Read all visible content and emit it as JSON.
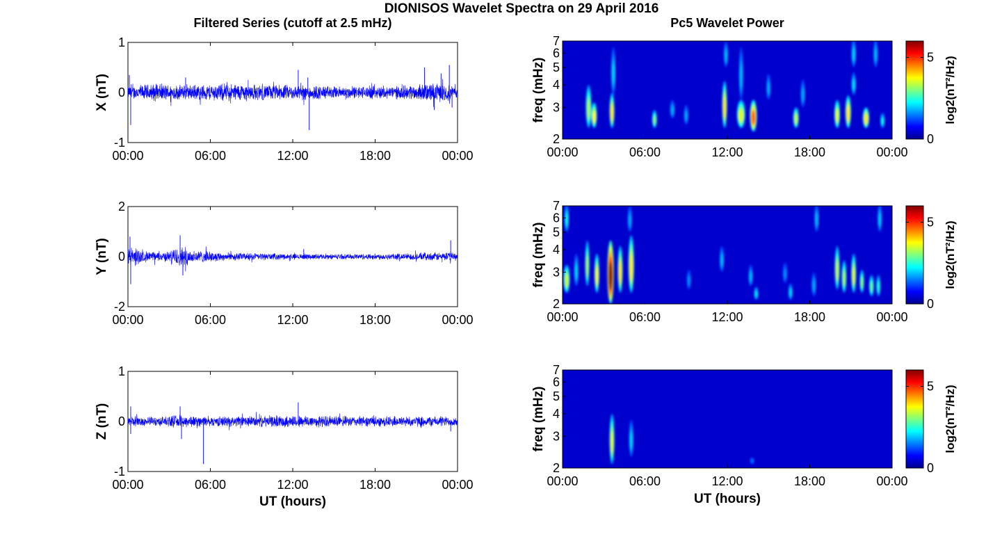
{
  "figure": {
    "title": "DIONISOS Wavelet Spectra on 29 April 2016",
    "left_column_title": "Filtered Series (cutoff at 2.5 mHz)",
    "right_column_title": "Pc5 Wavelet Power",
    "xlabel": "UT (hours)"
  },
  "chart_data": [
    {
      "type": "line",
      "ylabel": "X (nT)",
      "x_ticks": [
        "00:00",
        "06:00",
        "12:00",
        "18:00",
        "00:00"
      ],
      "x_range_hours": [
        0,
        24
      ],
      "ylim": [
        -1,
        1
      ],
      "y_ticks": [
        "1",
        "0",
        "-1"
      ],
      "series_color": "#0000ff",
      "envelope": [
        [
          0,
          0.12
        ],
        [
          1,
          0.15
        ],
        [
          2,
          0.17
        ],
        [
          3,
          0.16
        ],
        [
          4,
          0.14
        ],
        [
          5,
          0.15
        ],
        [
          6,
          0.16
        ],
        [
          7,
          0.17
        ],
        [
          8,
          0.17
        ],
        [
          9,
          0.16
        ],
        [
          10,
          0.15
        ],
        [
          11,
          0.15
        ],
        [
          12,
          0.14
        ],
        [
          13,
          0.15
        ],
        [
          14,
          0.14
        ],
        [
          15,
          0.12
        ],
        [
          16,
          0.12
        ],
        [
          17,
          0.12
        ],
        [
          18,
          0.13
        ],
        [
          19,
          0.12
        ],
        [
          20,
          0.13
        ],
        [
          21,
          0.15
        ],
        [
          22,
          0.18
        ],
        [
          23,
          0.17
        ],
        [
          24,
          0.12
        ]
      ],
      "spikes": [
        [
          0.2,
          -0.65
        ],
        [
          0.1,
          0.35
        ],
        [
          4.2,
          0.3
        ],
        [
          12.4,
          0.45
        ],
        [
          13.2,
          -0.75
        ],
        [
          13.1,
          0.3
        ],
        [
          21.6,
          0.5
        ],
        [
          23.4,
          0.55
        ],
        [
          22.3,
          -0.35
        ],
        [
          22.8,
          0.38
        ],
        [
          23.6,
          -0.3
        ]
      ]
    },
    {
      "type": "heatmap",
      "ylabel": "freq (mHz)",
      "x_ticks": [
        "00:00",
        "06:00",
        "12:00",
        "18:00",
        "00:00"
      ],
      "y_ticks": [
        "2",
        "3",
        "4",
        "5",
        "6",
        "7"
      ],
      "ylim_mhz": [
        2,
        7
      ],
      "y_scale": "log",
      "colorbar_label": "log2(nT²/Hz)",
      "colorbar_ticks": [
        "0",
        "5"
      ],
      "colorbar_range": [
        0,
        6
      ],
      "colormap": "jet",
      "blobs": [
        [
          1.9,
          2.3,
          4.0,
          0.15,
          2.8
        ],
        [
          2.3,
          2.3,
          3.2,
          0.15,
          3.4
        ],
        [
          3.6,
          2.3,
          3.6,
          0.12,
          3.6
        ],
        [
          3.7,
          3.5,
          6.5,
          0.06,
          1.5
        ],
        [
          6.7,
          2.3,
          2.9,
          0.12,
          2.6
        ],
        [
          8.0,
          2.6,
          3.3,
          0.12,
          1.2
        ],
        [
          9.0,
          2.4,
          3.1,
          0.1,
          1.2
        ],
        [
          11.8,
          2.3,
          4.2,
          0.12,
          3.6
        ],
        [
          11.9,
          5.0,
          7.0,
          0.05,
          1.3
        ],
        [
          13.0,
          2.3,
          3.3,
          0.25,
          3.2
        ],
        [
          13.9,
          2.2,
          3.3,
          0.2,
          4.5
        ],
        [
          13.0,
          3.3,
          6.5,
          0.06,
          1.3
        ],
        [
          15.0,
          3.3,
          4.6,
          0.07,
          1.2
        ],
        [
          17.0,
          2.3,
          3.0,
          0.15,
          3.0
        ],
        [
          17.5,
          3.0,
          4.3,
          0.08,
          1.2
        ],
        [
          20.0,
          2.3,
          3.3,
          0.15,
          3.2
        ],
        [
          20.8,
          2.3,
          3.5,
          0.15,
          3.6
        ],
        [
          21.2,
          3.5,
          4.7,
          0.08,
          1.6
        ],
        [
          22.1,
          2.3,
          3.0,
          0.18,
          3.6
        ],
        [
          21.2,
          5.0,
          7.2,
          0.06,
          1.5
        ],
        [
          22.8,
          5.0,
          7.2,
          0.06,
          1.3
        ],
        [
          23.3,
          2.3,
          2.8,
          0.1,
          1.8
        ]
      ]
    },
    {
      "type": "line",
      "ylabel": "Y (nT)",
      "x_ticks": [
        "00:00",
        "06:00",
        "12:00",
        "18:00",
        "00:00"
      ],
      "x_range_hours": [
        0,
        24
      ],
      "ylim": [
        -2,
        2
      ],
      "y_ticks": [
        "2",
        "0",
        "-2"
      ],
      "series_color": "#0000ff",
      "envelope": [
        [
          0,
          0.35
        ],
        [
          0.5,
          0.4
        ],
        [
          1,
          0.22
        ],
        [
          2,
          0.18
        ],
        [
          3,
          0.2
        ],
        [
          3.8,
          0.45
        ],
        [
          4.5,
          0.3
        ],
        [
          5,
          0.25
        ],
        [
          6,
          0.2
        ],
        [
          7,
          0.16
        ],
        [
          8,
          0.15
        ],
        [
          9,
          0.14
        ],
        [
          10,
          0.13
        ],
        [
          11,
          0.12
        ],
        [
          12,
          0.11
        ],
        [
          13,
          0.11
        ],
        [
          14,
          0.1
        ],
        [
          15,
          0.1
        ],
        [
          16,
          0.1
        ],
        [
          17,
          0.11
        ],
        [
          18,
          0.12
        ],
        [
          19,
          0.12
        ],
        [
          20,
          0.13
        ],
        [
          21,
          0.14
        ],
        [
          22,
          0.15
        ],
        [
          23,
          0.17
        ],
        [
          24,
          0.15
        ]
      ],
      "spikes": [
        [
          0.2,
          -1.1
        ],
        [
          0.15,
          0.8
        ],
        [
          3.8,
          0.85
        ],
        [
          4.0,
          -0.75
        ],
        [
          23.5,
          0.65
        ],
        [
          12.8,
          0.3
        ]
      ]
    },
    {
      "type": "heatmap",
      "ylabel": "freq (mHz)",
      "x_ticks": [
        "00:00",
        "06:00",
        "12:00",
        "18:00",
        "00:00"
      ],
      "y_ticks": [
        "2",
        "3",
        "4",
        "5",
        "6",
        "7"
      ],
      "ylim_mhz": [
        2,
        7
      ],
      "y_scale": "log",
      "colorbar_label": "log2(nT²/Hz)",
      "colorbar_ticks": [
        "0",
        "5"
      ],
      "colorbar_range": [
        0,
        6
      ],
      "colormap": "jet",
      "blobs": [
        [
          0.3,
          2.3,
          3.3,
          0.18,
          3.0
        ],
        [
          0.3,
          5.0,
          7.2,
          0.05,
          1.8
        ],
        [
          1.0,
          2.5,
          3.8,
          0.1,
          1.5
        ],
        [
          1.8,
          2.5,
          4.5,
          0.1,
          2.8
        ],
        [
          2.5,
          2.3,
          3.8,
          0.12,
          3.4
        ],
        [
          3.5,
          2.0,
          4.5,
          0.18,
          6.0
        ],
        [
          4.2,
          2.3,
          4.2,
          0.12,
          3.6
        ],
        [
          5.0,
          2.3,
          4.8,
          0.15,
          3.6
        ],
        [
          4.9,
          5.0,
          7.0,
          0.05,
          1.2
        ],
        [
          9.2,
          2.4,
          3.1,
          0.08,
          1.0
        ],
        [
          11.6,
          3.0,
          4.2,
          0.06,
          1.3
        ],
        [
          13.7,
          2.5,
          3.3,
          0.1,
          1.3
        ],
        [
          14.1,
          2.1,
          2.5,
          0.08,
          1.6
        ],
        [
          16.2,
          2.6,
          3.4,
          0.08,
          1.0
        ],
        [
          16.6,
          2.1,
          2.6,
          0.1,
          1.5
        ],
        [
          18.3,
          2.2,
          3.0,
          0.1,
          1.2
        ],
        [
          18.5,
          5.0,
          7.2,
          0.05,
          1.3
        ],
        [
          20.0,
          2.4,
          4.2,
          0.12,
          3.0
        ],
        [
          20.5,
          2.3,
          3.5,
          0.12,
          2.8
        ],
        [
          21.2,
          2.3,
          3.8,
          0.12,
          3.2
        ],
        [
          21.8,
          2.3,
          3.1,
          0.1,
          2.6
        ],
        [
          22.5,
          2.2,
          2.9,
          0.12,
          2.4
        ],
        [
          23.0,
          2.2,
          2.9,
          0.1,
          2.0
        ],
        [
          23.1,
          5.0,
          7.2,
          0.05,
          1.4
        ]
      ]
    },
    {
      "type": "line",
      "ylabel": "Z (nT)",
      "x_ticks": [
        "00:00",
        "06:00",
        "12:00",
        "18:00",
        "00:00"
      ],
      "x_range_hours": [
        0,
        24
      ],
      "ylim": [
        -1,
        1
      ],
      "y_ticks": [
        "1",
        "0",
        "-1"
      ],
      "series_color": "#0000ff",
      "envelope": [
        [
          0,
          0.1
        ],
        [
          1,
          0.09
        ],
        [
          2,
          0.09
        ],
        [
          3,
          0.1
        ],
        [
          4,
          0.13
        ],
        [
          5,
          0.1
        ],
        [
          6,
          0.09
        ],
        [
          7,
          0.1
        ],
        [
          8,
          0.1
        ],
        [
          9,
          0.1
        ],
        [
          10,
          0.11
        ],
        [
          11,
          0.11
        ],
        [
          12,
          0.12
        ],
        [
          13,
          0.12
        ],
        [
          14,
          0.11
        ],
        [
          15,
          0.11
        ],
        [
          16,
          0.1
        ],
        [
          17,
          0.1
        ],
        [
          18,
          0.1
        ],
        [
          19,
          0.1
        ],
        [
          20,
          0.1
        ],
        [
          21,
          0.1
        ],
        [
          22,
          0.1
        ],
        [
          23,
          0.1
        ],
        [
          24,
          0.09
        ]
      ],
      "spikes": [
        [
          0.2,
          -0.25
        ],
        [
          0.2,
          0.3
        ],
        [
          3.8,
          0.3
        ],
        [
          3.9,
          -0.35
        ],
        [
          5.5,
          -0.85
        ],
        [
          12.4,
          0.38
        ],
        [
          23.5,
          -0.2
        ]
      ]
    },
    {
      "type": "heatmap",
      "ylabel": "freq (mHz)",
      "x_ticks": [
        "00:00",
        "06:00",
        "12:00",
        "18:00",
        "00:00"
      ],
      "y_ticks": [
        "2",
        "3",
        "4",
        "5",
        "6",
        "7"
      ],
      "ylim_mhz": [
        2,
        7
      ],
      "y_scale": "log",
      "colorbar_label": "log2(nT²/Hz)",
      "colorbar_ticks": [
        "0",
        "5"
      ],
      "colorbar_range": [
        0,
        6
      ],
      "colormap": "jet",
      "blobs": [
        [
          3.6,
          2.1,
          4.0,
          0.12,
          3.2
        ],
        [
          5.0,
          2.3,
          3.7,
          0.08,
          1.5
        ],
        [
          13.8,
          2.1,
          2.3,
          0.05,
          0.8
        ]
      ]
    }
  ]
}
